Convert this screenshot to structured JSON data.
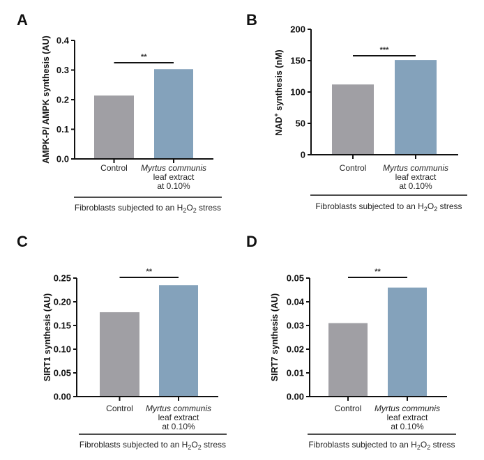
{
  "figure": {
    "group_label_prefix": "Fibroblasts subjected to an H",
    "group_label_sub1": "2",
    "group_label_mid": "O",
    "group_label_sub2": "2",
    "group_label_suffix": " stress"
  },
  "colors": {
    "control": "#a09fa4",
    "treatment": "#84a2bb",
    "axis": "#111111"
  },
  "chart_data": [
    {
      "panel": "A",
      "type": "bar",
      "title": "",
      "ylabel": "AMPK-P/ AMPK synthesis (AU)",
      "ylabel_superscript": "",
      "xlabel": "Fibroblasts subjected to an H2O2 stress",
      "categories": [
        "Control",
        "Myrtus communis leaf extract at 0.10%"
      ],
      "category_lines": [
        [
          "Control"
        ],
        [
          "Myrtus communis",
          "leaf extract",
          "at 0.10%"
        ]
      ],
      "values": [
        0.214,
        0.303
      ],
      "ylim": [
        0,
        0.4
      ],
      "yticks": [
        0.0,
        0.1,
        0.2,
        0.3,
        0.4
      ],
      "ytick_labels": [
        "0.0",
        "0.1",
        "0.2",
        "0.3",
        "0.4"
      ],
      "significance": "**",
      "grid": false
    },
    {
      "panel": "B",
      "type": "bar",
      "title": "",
      "ylabel": "NAD+ synthesis (nM)",
      "ylabel_prefix": "NAD",
      "ylabel_superscript": "+",
      "ylabel_suffix": " synthesis (nM)",
      "xlabel": "Fibroblasts subjected to an H2O2 stress",
      "categories": [
        "Control",
        "Myrtus communis leaf extract at 0.10%"
      ],
      "category_lines": [
        [
          "Control"
        ],
        [
          "Myrtus communis",
          "leaf extract",
          "at 0.10%"
        ]
      ],
      "values": [
        112,
        151
      ],
      "ylim": [
        0,
        200
      ],
      "yticks": [
        0,
        50,
        100,
        150,
        200
      ],
      "ytick_labels": [
        "0",
        "50",
        "100",
        "150",
        "200"
      ],
      "significance": "***",
      "grid": false
    },
    {
      "panel": "C",
      "type": "bar",
      "title": "",
      "ylabel": "SIRT1 synthesis (AU)",
      "ylabel_superscript": "",
      "xlabel": "Fibroblasts subjected to an H2O2 stress",
      "categories": [
        "Control",
        "Myrtus communis leaf extract at 0.10%"
      ],
      "category_lines": [
        [
          "Control"
        ],
        [
          "Myrtus communis",
          "leaf extract",
          "at 0.10%"
        ]
      ],
      "values": [
        0.178,
        0.235
      ],
      "ylim": [
        0,
        0.25
      ],
      "yticks": [
        0.0,
        0.05,
        0.1,
        0.15,
        0.2,
        0.25
      ],
      "ytick_labels": [
        "0.00",
        "0.05",
        "0.10",
        "0.15",
        "0.20",
        "0.25"
      ],
      "significance": "**",
      "grid": false
    },
    {
      "panel": "D",
      "type": "bar",
      "title": "",
      "ylabel": "SIRT7 synthesis (AU)",
      "ylabel_superscript": "",
      "xlabel": "Fibroblasts subjected to an H2O2 stress",
      "categories": [
        "Control",
        "Myrtus communis leaf extract at 0.10%"
      ],
      "category_lines": [
        [
          "Control"
        ],
        [
          "Myrtus communis",
          "leaf extract",
          "at  0.10%"
        ]
      ],
      "values": [
        0.031,
        0.046
      ],
      "ylim": [
        0,
        0.05
      ],
      "yticks": [
        0.0,
        0.01,
        0.02,
        0.03,
        0.04,
        0.05
      ],
      "ytick_labels": [
        "0.00",
        "0.01",
        "0.02",
        "0.03",
        "0.04",
        "0.05"
      ],
      "significance": "**",
      "grid": false
    }
  ]
}
